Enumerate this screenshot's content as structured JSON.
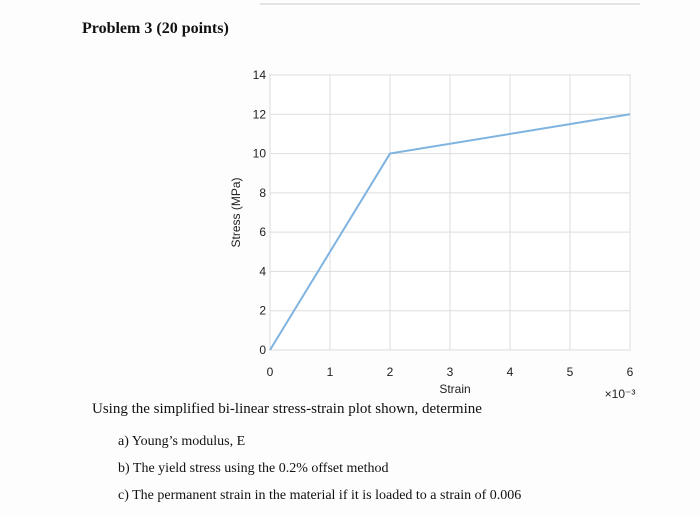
{
  "header": {
    "title": "Problem 3 (20 points)"
  },
  "chart_data": {
    "type": "line",
    "x_label": "Strain",
    "y_label": "Stress (MPa)",
    "x_multiplier": "×10⁻³",
    "x": [
      0,
      2,
      6
    ],
    "series": [
      {
        "color": "#7fb3e0",
        "values": [
          0,
          10,
          12
        ]
      }
    ],
    "xlim": [
      0,
      6
    ],
    "xticks": [
      0,
      1,
      2,
      3,
      4,
      5,
      6
    ],
    "ylim": [
      0,
      14
    ],
    "yticks": [
      0,
      2,
      4,
      6,
      8,
      10,
      12,
      14
    ],
    "grid": true
  },
  "prompt": "Using the simplified bi-linear stress-strain plot shown, determine",
  "items": [
    "a) Young’s modulus, E",
    "b) The yield stress using the 0.2% offset method",
    "c) The permanent strain in the material if it is loaded to a strain of 0.006"
  ]
}
